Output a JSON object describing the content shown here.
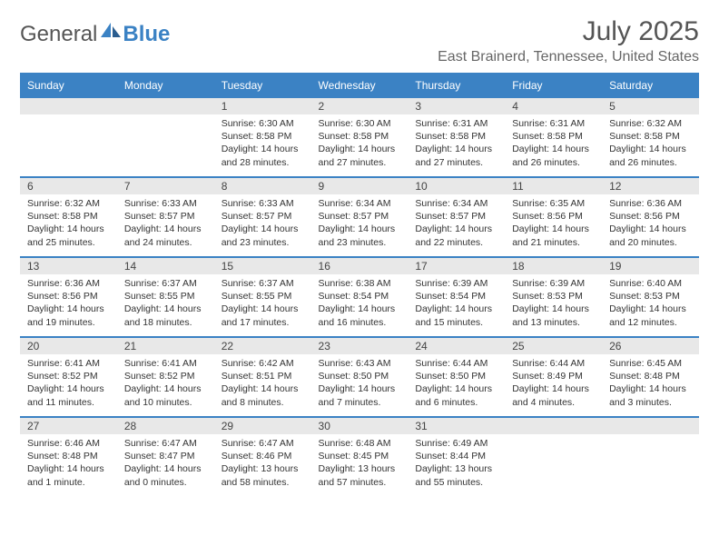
{
  "brand": {
    "word1": "General",
    "word2": "Blue"
  },
  "title": "July 2025",
  "location": "East Brainerd, Tennessee, United States",
  "colors": {
    "header_bg": "#3b82c4",
    "header_text": "#ffffff",
    "daynum_bg": "#e8e8e8",
    "border": "#3b82c4",
    "body_text": "#333333",
    "title_text": "#555555"
  },
  "weekdays": [
    "Sunday",
    "Monday",
    "Tuesday",
    "Wednesday",
    "Thursday",
    "Friday",
    "Saturday"
  ],
  "weeks": [
    [
      null,
      null,
      {
        "n": "1",
        "sr": "Sunrise: 6:30 AM",
        "ss": "Sunset: 8:58 PM",
        "dl": "Daylight: 14 hours and 28 minutes."
      },
      {
        "n": "2",
        "sr": "Sunrise: 6:30 AM",
        "ss": "Sunset: 8:58 PM",
        "dl": "Daylight: 14 hours and 27 minutes."
      },
      {
        "n": "3",
        "sr": "Sunrise: 6:31 AM",
        "ss": "Sunset: 8:58 PM",
        "dl": "Daylight: 14 hours and 27 minutes."
      },
      {
        "n": "4",
        "sr": "Sunrise: 6:31 AM",
        "ss": "Sunset: 8:58 PM",
        "dl": "Daylight: 14 hours and 26 minutes."
      },
      {
        "n": "5",
        "sr": "Sunrise: 6:32 AM",
        "ss": "Sunset: 8:58 PM",
        "dl": "Daylight: 14 hours and 26 minutes."
      }
    ],
    [
      {
        "n": "6",
        "sr": "Sunrise: 6:32 AM",
        "ss": "Sunset: 8:58 PM",
        "dl": "Daylight: 14 hours and 25 minutes."
      },
      {
        "n": "7",
        "sr": "Sunrise: 6:33 AM",
        "ss": "Sunset: 8:57 PM",
        "dl": "Daylight: 14 hours and 24 minutes."
      },
      {
        "n": "8",
        "sr": "Sunrise: 6:33 AM",
        "ss": "Sunset: 8:57 PM",
        "dl": "Daylight: 14 hours and 23 minutes."
      },
      {
        "n": "9",
        "sr": "Sunrise: 6:34 AM",
        "ss": "Sunset: 8:57 PM",
        "dl": "Daylight: 14 hours and 23 minutes."
      },
      {
        "n": "10",
        "sr": "Sunrise: 6:34 AM",
        "ss": "Sunset: 8:57 PM",
        "dl": "Daylight: 14 hours and 22 minutes."
      },
      {
        "n": "11",
        "sr": "Sunrise: 6:35 AM",
        "ss": "Sunset: 8:56 PM",
        "dl": "Daylight: 14 hours and 21 minutes."
      },
      {
        "n": "12",
        "sr": "Sunrise: 6:36 AM",
        "ss": "Sunset: 8:56 PM",
        "dl": "Daylight: 14 hours and 20 minutes."
      }
    ],
    [
      {
        "n": "13",
        "sr": "Sunrise: 6:36 AM",
        "ss": "Sunset: 8:56 PM",
        "dl": "Daylight: 14 hours and 19 minutes."
      },
      {
        "n": "14",
        "sr": "Sunrise: 6:37 AM",
        "ss": "Sunset: 8:55 PM",
        "dl": "Daylight: 14 hours and 18 minutes."
      },
      {
        "n": "15",
        "sr": "Sunrise: 6:37 AM",
        "ss": "Sunset: 8:55 PM",
        "dl": "Daylight: 14 hours and 17 minutes."
      },
      {
        "n": "16",
        "sr": "Sunrise: 6:38 AM",
        "ss": "Sunset: 8:54 PM",
        "dl": "Daylight: 14 hours and 16 minutes."
      },
      {
        "n": "17",
        "sr": "Sunrise: 6:39 AM",
        "ss": "Sunset: 8:54 PM",
        "dl": "Daylight: 14 hours and 15 minutes."
      },
      {
        "n": "18",
        "sr": "Sunrise: 6:39 AM",
        "ss": "Sunset: 8:53 PM",
        "dl": "Daylight: 14 hours and 13 minutes."
      },
      {
        "n": "19",
        "sr": "Sunrise: 6:40 AM",
        "ss": "Sunset: 8:53 PM",
        "dl": "Daylight: 14 hours and 12 minutes."
      }
    ],
    [
      {
        "n": "20",
        "sr": "Sunrise: 6:41 AM",
        "ss": "Sunset: 8:52 PM",
        "dl": "Daylight: 14 hours and 11 minutes."
      },
      {
        "n": "21",
        "sr": "Sunrise: 6:41 AM",
        "ss": "Sunset: 8:52 PM",
        "dl": "Daylight: 14 hours and 10 minutes."
      },
      {
        "n": "22",
        "sr": "Sunrise: 6:42 AM",
        "ss": "Sunset: 8:51 PM",
        "dl": "Daylight: 14 hours and 8 minutes."
      },
      {
        "n": "23",
        "sr": "Sunrise: 6:43 AM",
        "ss": "Sunset: 8:50 PM",
        "dl": "Daylight: 14 hours and 7 minutes."
      },
      {
        "n": "24",
        "sr": "Sunrise: 6:44 AM",
        "ss": "Sunset: 8:50 PM",
        "dl": "Daylight: 14 hours and 6 minutes."
      },
      {
        "n": "25",
        "sr": "Sunrise: 6:44 AM",
        "ss": "Sunset: 8:49 PM",
        "dl": "Daylight: 14 hours and 4 minutes."
      },
      {
        "n": "26",
        "sr": "Sunrise: 6:45 AM",
        "ss": "Sunset: 8:48 PM",
        "dl": "Daylight: 14 hours and 3 minutes."
      }
    ],
    [
      {
        "n": "27",
        "sr": "Sunrise: 6:46 AM",
        "ss": "Sunset: 8:48 PM",
        "dl": "Daylight: 14 hours and 1 minute."
      },
      {
        "n": "28",
        "sr": "Sunrise: 6:47 AM",
        "ss": "Sunset: 8:47 PM",
        "dl": "Daylight: 14 hours and 0 minutes."
      },
      {
        "n": "29",
        "sr": "Sunrise: 6:47 AM",
        "ss": "Sunset: 8:46 PM",
        "dl": "Daylight: 13 hours and 58 minutes."
      },
      {
        "n": "30",
        "sr": "Sunrise: 6:48 AM",
        "ss": "Sunset: 8:45 PM",
        "dl": "Daylight: 13 hours and 57 minutes."
      },
      {
        "n": "31",
        "sr": "Sunrise: 6:49 AM",
        "ss": "Sunset: 8:44 PM",
        "dl": "Daylight: 13 hours and 55 minutes."
      },
      null,
      null
    ]
  ]
}
